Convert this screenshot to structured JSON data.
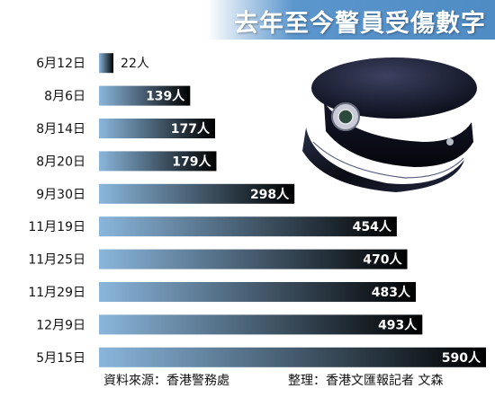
{
  "title": "去年至今警員受傷數字",
  "chart_data": {
    "type": "bar",
    "orientation": "horizontal",
    "categories": [
      "6月12日",
      "8月6日",
      "8月14日",
      "8月20日",
      "9月30日",
      "11月19日",
      "11月25日",
      "11月29日",
      "12月9日",
      "5月15日"
    ],
    "values": [
      22,
      139,
      177,
      179,
      298,
      454,
      470,
      483,
      493,
      590
    ],
    "value_labels": [
      "22人",
      "139人",
      "177人",
      "179人",
      "298人",
      "454人",
      "470人",
      "483人",
      "493人",
      "590人"
    ],
    "xlim": [
      0,
      590
    ],
    "grid": false,
    "legend": "none",
    "bar_gradient": [
      "#8ab6dc",
      "#000000"
    ]
  },
  "footer": {
    "source": "資料來源：香港警務處",
    "credit": "整理：香港文匯報記者  文森"
  },
  "colors": {
    "banner": "#5b96cd",
    "bar_light": "#8ab6dc",
    "bar_dark": "#000000"
  },
  "icons": {
    "illustration": "police-cap-icon"
  }
}
